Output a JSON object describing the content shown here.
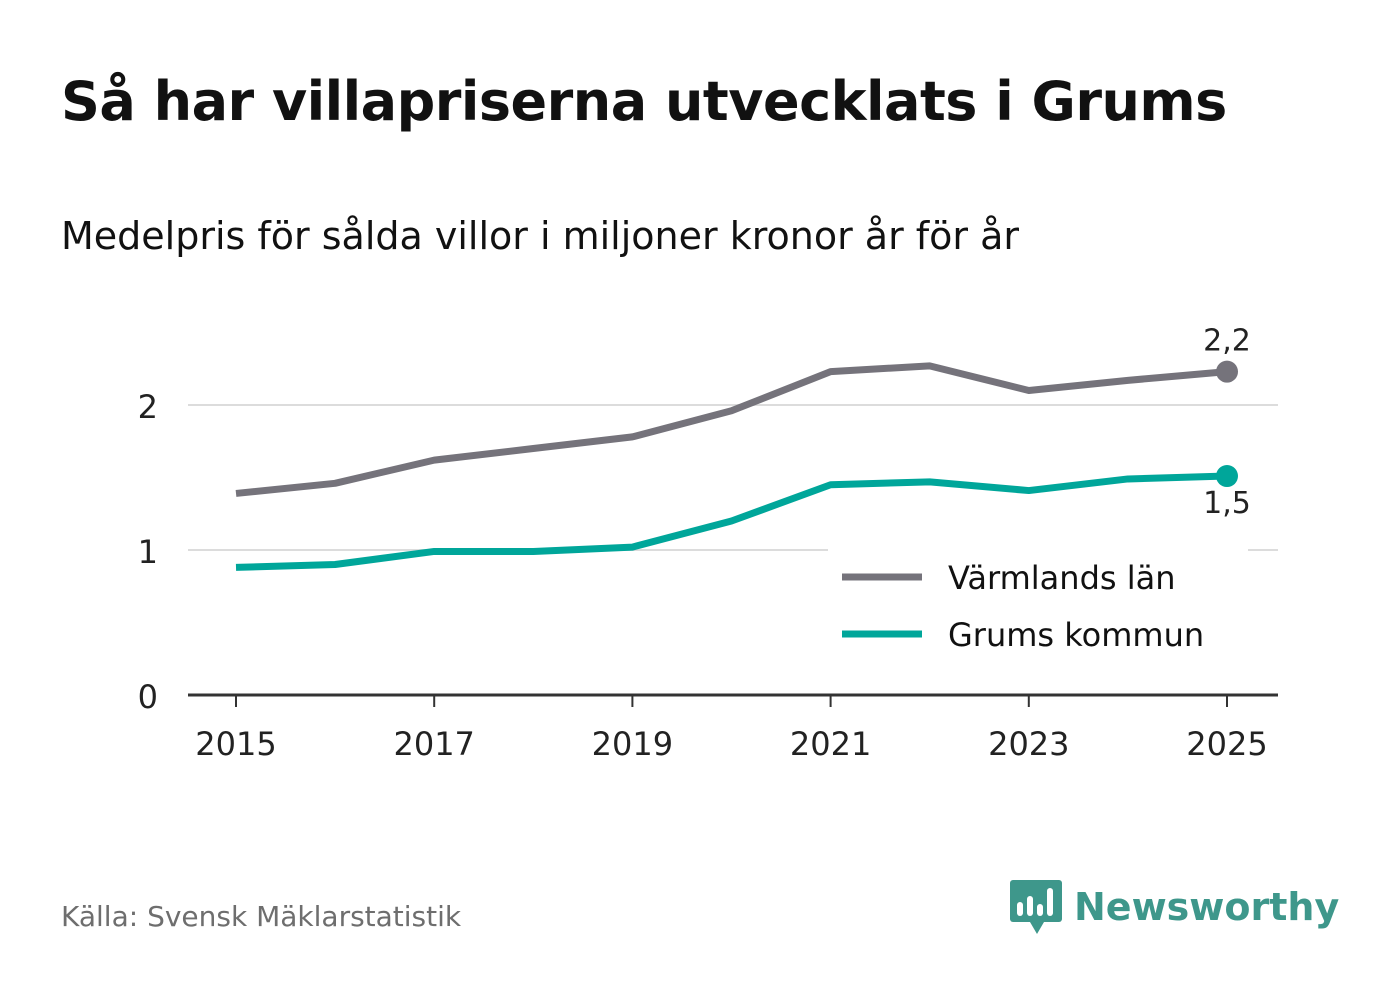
{
  "title": "Så har villapriserna utvecklats i Grums",
  "subtitle": "Medelpris för sålda villor i miljoner kronor år för år",
  "source": "Källa: Svensk Mäklarstatistik",
  "brand": {
    "name": "Newsworthy",
    "icon": "newsworthy-logo-icon",
    "color": "#3e978b"
  },
  "chart_data": {
    "type": "line",
    "title": "Så har villapriserna utvecklats i Grums",
    "subtitle": "Medelpris för sålda villor i miljoner kronor år för år",
    "xlabel": "",
    "ylabel": "",
    "x": [
      2015,
      2016,
      2017,
      2018,
      2019,
      2020,
      2021,
      2022,
      2023,
      2024,
      2025
    ],
    "xticks": [
      "2015",
      "2017",
      "2019",
      "2021",
      "2023",
      "2025"
    ],
    "xtick_values": [
      2015,
      2017,
      2019,
      2021,
      2023,
      2025
    ],
    "xlim": [
      2014.5,
      2025.5
    ],
    "ylim": [
      0,
      2.5
    ],
    "yticks": [
      "0",
      "1",
      "2"
    ],
    "ytick_values": [
      0,
      1,
      2
    ],
    "grid": true,
    "legend_position": "bottom-right",
    "series": [
      {
        "name": "Värmlands län",
        "color": "#75737b",
        "values": [
          1.39,
          1.46,
          1.62,
          1.7,
          1.78,
          1.96,
          2.23,
          2.27,
          2.1,
          2.17,
          2.23
        ],
        "end_label": "2,2"
      },
      {
        "name": "Grums kommun",
        "color": "#00a69a",
        "values": [
          0.88,
          0.9,
          0.99,
          0.99,
          1.02,
          1.2,
          1.45,
          1.47,
          1.41,
          1.49,
          1.51
        ],
        "end_label": "1,5"
      }
    ]
  }
}
